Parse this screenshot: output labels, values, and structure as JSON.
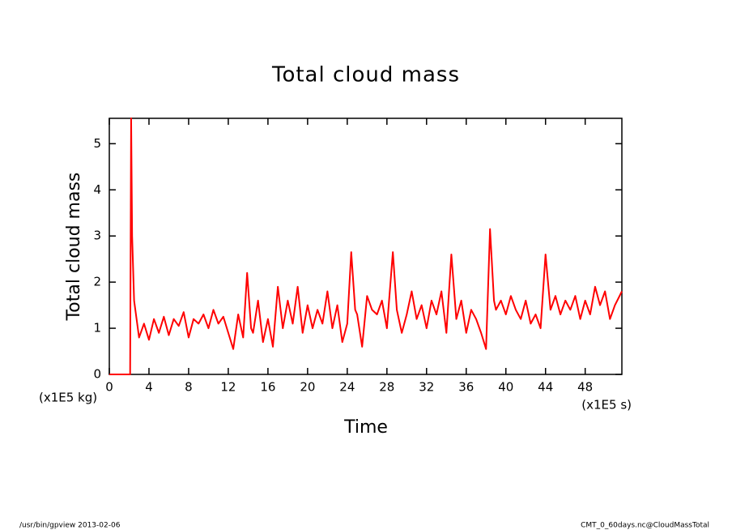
{
  "chart_data": {
    "type": "line",
    "title": "Total cloud mass",
    "y_label": "Total cloud mass",
    "x_label": "Time",
    "y_unit": "(x1E5 kg)",
    "x_unit": "(x1E5 s)",
    "footer_left": "/usr/bin/gpview  2013-02-06",
    "footer_right": "CMT_0_60days.nc@CloudMassTotal",
    "xlim": [
      0,
      51.7
    ],
    "ylim": [
      0,
      5.55
    ],
    "xticks": [
      0,
      4,
      8,
      12,
      16,
      20,
      24,
      28,
      32,
      36,
      40,
      44,
      48
    ],
    "yticks": [
      0,
      1,
      2,
      3,
      4,
      5
    ],
    "series": [
      {
        "name": "Total cloud mass",
        "color": "#ff0000",
        "x": [
          0,
          2.1,
          2.2,
          2.3,
          2.5,
          3.0,
          3.5,
          4.0,
          4.5,
          5.0,
          5.5,
          6.0,
          6.5,
          7.0,
          7.5,
          8.0,
          8.5,
          9.0,
          9.5,
          10.0,
          10.5,
          11.0,
          11.5,
          12.0,
          12.5,
          13.0,
          13.5,
          13.9,
          14.3,
          14.5,
          15.0,
          15.5,
          16.0,
          16.5,
          17.0,
          17.5,
          18.0,
          18.5,
          19.0,
          19.5,
          20.0,
          20.5,
          21.0,
          21.5,
          22.0,
          22.5,
          23.0,
          23.5,
          24.0,
          24.4,
          24.8,
          25.0,
          25.5,
          26.0,
          26.5,
          27.0,
          27.5,
          28.0,
          28.6,
          29.0,
          29.5,
          30.0,
          30.5,
          31.0,
          31.5,
          32.0,
          32.5,
          33.0,
          33.5,
          34.0,
          34.5,
          35.0,
          35.5,
          36.0,
          36.5,
          37.0,
          37.5,
          38.0,
          38.4,
          38.8,
          39.0,
          39.5,
          40.0,
          40.5,
          41.0,
          41.5,
          42.0,
          42.5,
          43.0,
          43.5,
          44.0,
          44.5,
          45.0,
          45.5,
          46.0,
          46.5,
          47.0,
          47.5,
          48.0,
          48.5,
          49.0,
          49.5,
          50.0,
          50.5,
          51.0,
          51.7
        ],
        "values": [
          0,
          0,
          5.55,
          3.0,
          1.6,
          0.8,
          1.1,
          0.75,
          1.2,
          0.9,
          1.25,
          0.85,
          1.2,
          1.05,
          1.35,
          0.8,
          1.2,
          1.1,
          1.3,
          1.0,
          1.4,
          1.1,
          1.25,
          0.9,
          0.55,
          1.3,
          0.8,
          2.2,
          1.0,
          0.9,
          1.6,
          0.7,
          1.2,
          0.6,
          1.9,
          1.0,
          1.6,
          1.1,
          1.9,
          0.9,
          1.5,
          1.0,
          1.4,
          1.1,
          1.8,
          1.0,
          1.5,
          0.7,
          1.1,
          2.65,
          1.4,
          1.3,
          0.6,
          1.7,
          1.4,
          1.3,
          1.6,
          1.0,
          2.65,
          1.4,
          0.9,
          1.3,
          1.8,
          1.2,
          1.5,
          1.0,
          1.6,
          1.3,
          1.8,
          0.9,
          2.6,
          1.2,
          1.6,
          0.9,
          1.4,
          1.2,
          0.9,
          0.55,
          3.15,
          1.6,
          1.4,
          1.6,
          1.3,
          1.7,
          1.4,
          1.2,
          1.6,
          1.1,
          1.3,
          1.0,
          2.6,
          1.4,
          1.7,
          1.3,
          1.6,
          1.4,
          1.7,
          1.2,
          1.6,
          1.3,
          1.9,
          1.5,
          1.8,
          1.2,
          1.5,
          1.8
        ]
      }
    ]
  }
}
